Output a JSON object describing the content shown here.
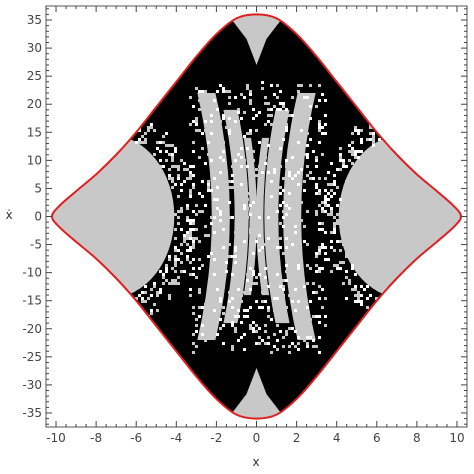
{
  "chart_data": {
    "type": "heatmap",
    "xlabel": "x",
    "ylabel": "ẋ",
    "xlim": [
      -10.5,
      10.5
    ],
    "ylim": [
      -37.5,
      37.5
    ],
    "x_ticks": [
      -10,
      -8,
      -6,
      -4,
      -2,
      0,
      2,
      4,
      6,
      8,
      10
    ],
    "y_ticks": [
      -35,
      -30,
      -25,
      -20,
      -15,
      -10,
      -5,
      0,
      5,
      10,
      15,
      20,
      25,
      30,
      35
    ],
    "x_tick_labels": [
      "-10",
      "-8",
      "-6",
      "-4",
      "-2",
      "0",
      "2",
      "4",
      "6",
      "8",
      "10"
    ],
    "y_tick_labels": [
      "-35",
      "-30",
      "-25",
      "-20",
      "-15",
      "-10",
      "-5",
      "0",
      "5",
      "10",
      "15",
      "20",
      "25",
      "30",
      "35"
    ],
    "legend": "none",
    "grid": false,
    "colors": {
      "background_region": "#000000",
      "stable_region": "#c8c8c8",
      "boundary_curve": "#e02020",
      "frame": "#555555"
    },
    "boundary_curve": {
      "description_points": [
        [
          0,
          36
        ],
        [
          1,
          35.3
        ],
        [
          2,
          32.5
        ],
        [
          3,
          28.5
        ],
        [
          4,
          24
        ],
        [
          5,
          19.5
        ],
        [
          6,
          15
        ],
        [
          7,
          11
        ],
        [
          8,
          7.5
        ],
        [
          9,
          4.5
        ],
        [
          9.8,
          2
        ],
        [
          10.2,
          0
        ]
      ],
      "symmetry": "mirror in x and y"
    },
    "stable_regions": {
      "lobes": [
        {
          "cx": -7.3,
          "cy": 0,
          "rx": 3.2,
          "ry": 14.5
        },
        {
          "cx": 7.3,
          "cy": 0,
          "rx": 3.2,
          "ry": 14.5
        }
      ],
      "arcs": [
        {
          "x_center": -2.5,
          "x_half_width": 0.45,
          "y_extent": 22
        },
        {
          "x_center": 2.5,
          "x_half_width": 0.45,
          "y_extent": 22
        },
        {
          "x_center": -1.3,
          "x_half_width": 0.35,
          "y_extent": 19
        },
        {
          "x_center": 1.3,
          "x_half_width": 0.35,
          "y_extent": 19
        },
        {
          "x_center": -0.45,
          "x_half_width": 0.18,
          "y_extent": 14
        },
        {
          "x_center": 0.45,
          "x_half_width": 0.18,
          "y_extent": 14
        }
      ],
      "spikes": [
        {
          "x": 0,
          "y_tip": 36.3,
          "y_base": 27,
          "half_width": 0.5
        },
        {
          "x": 0,
          "y_tip": -36.3,
          "y_base": -27,
          "half_width": 0.5
        }
      ]
    }
  }
}
